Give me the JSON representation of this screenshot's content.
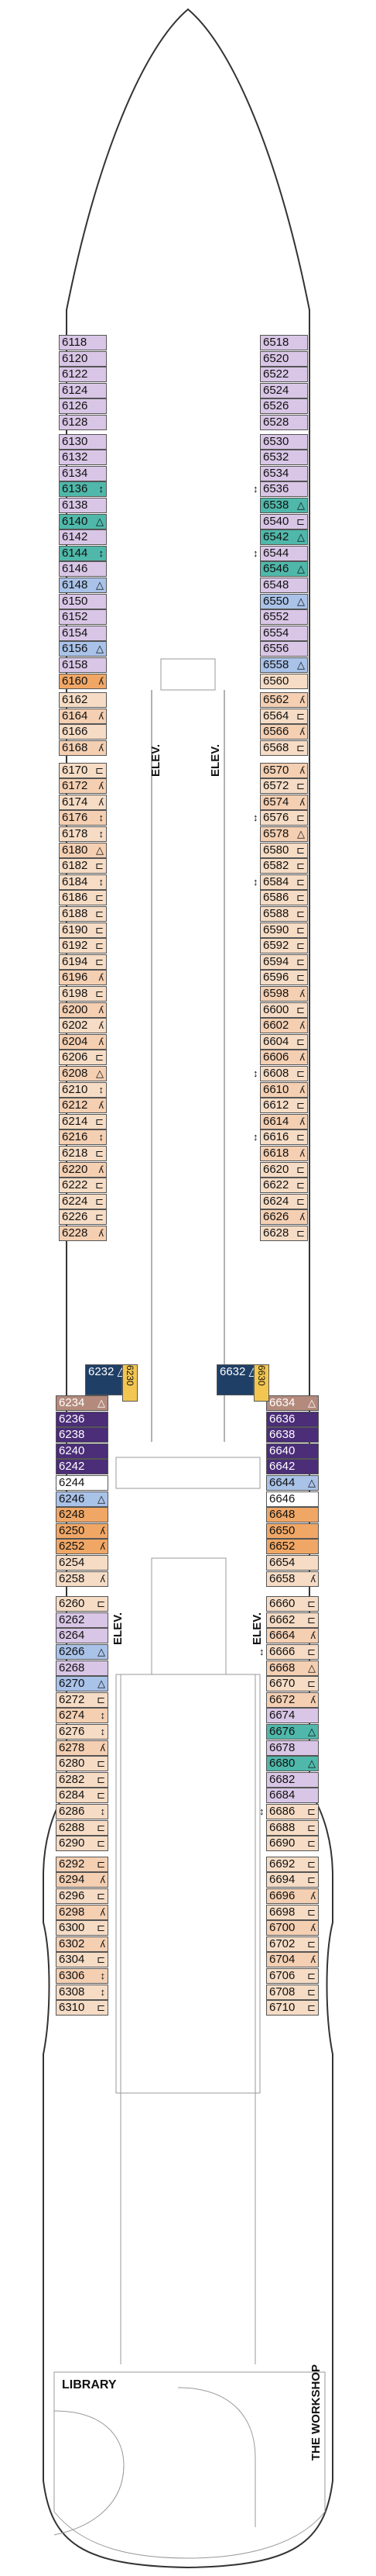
{
  "labels": {
    "elevator": "ELEV.",
    "library": "LIBRARY",
    "workshop": "THE WORKSHOP"
  },
  "colors": {
    "lilac": "#d9c6e6",
    "teal": "#4fb8aa",
    "blue": "#a9c2e8",
    "tan": "#f4cfb2",
    "orange": "#f0a766",
    "rose": "#b48a7c",
    "purple": "#4b2d78",
    "navy": "#1f3f66",
    "yellow": "#f2c650"
  },
  "icons": {
    "accessible": "△",
    "connecting": "↕",
    "sofa_bed": "⊸",
    "bed": "⊏"
  },
  "left_cabins": [
    {
      "n": "6118",
      "c": "lilac"
    },
    {
      "n": "6120",
      "c": "lilac"
    },
    {
      "n": "6122",
      "c": "lilac"
    },
    {
      "n": "6124",
      "c": "lilac"
    },
    {
      "n": "6126",
      "c": "lilac"
    },
    {
      "n": "6128",
      "c": "lilac"
    },
    {
      "n": "6130",
      "c": "lilac"
    },
    {
      "n": "6132",
      "c": "lilac"
    },
    {
      "n": "6134",
      "c": "lilac"
    },
    {
      "n": "6136",
      "c": "teal",
      "m": "↕"
    },
    {
      "n": "6138",
      "c": "lilac"
    },
    {
      "n": "6140",
      "c": "teal",
      "m": "△"
    },
    {
      "n": "6142",
      "c": "lilac"
    },
    {
      "n": "6144",
      "c": "teal",
      "m": "↕"
    },
    {
      "n": "6146",
      "c": "lilac"
    },
    {
      "n": "6148",
      "c": "blue",
      "m": "△"
    },
    {
      "n": "6150",
      "c": "lilac"
    },
    {
      "n": "6152",
      "c": "lilac"
    },
    {
      "n": "6154",
      "c": "lilac"
    },
    {
      "n": "6156",
      "c": "blue",
      "m": "△"
    },
    {
      "n": "6158",
      "c": "lilac"
    },
    {
      "n": "6160",
      "c": "orange",
      "m": "ʎ"
    },
    {
      "n": "6162",
      "c": "sand"
    },
    {
      "n": "6164",
      "c": "tan",
      "m": "ʎ"
    },
    {
      "n": "6166",
      "c": "sand"
    },
    {
      "n": "6168",
      "c": "tan",
      "m": "ʎ"
    },
    {
      "n": "6170",
      "c": "sand",
      "m": "⊏"
    },
    {
      "n": "6172",
      "c": "tan",
      "m": "ʎ"
    },
    {
      "n": "6174",
      "c": "sand",
      "m": "ʎ"
    },
    {
      "n": "6176",
      "c": "tan",
      "m": "↕"
    },
    {
      "n": "6178",
      "c": "sand",
      "m": "↕"
    },
    {
      "n": "6180",
      "c": "tan",
      "m": "△"
    },
    {
      "n": "6182",
      "c": "sand",
      "m": "⊏"
    },
    {
      "n": "6184",
      "c": "sand",
      "m": "↕"
    },
    {
      "n": "6186",
      "c": "sand",
      "m": "⊏"
    },
    {
      "n": "6188",
      "c": "sand",
      "m": "⊏"
    },
    {
      "n": "6190",
      "c": "sand",
      "m": "⊏"
    },
    {
      "n": "6192",
      "c": "sand",
      "m": "⊏"
    },
    {
      "n": "6194",
      "c": "sand",
      "m": "⊏"
    },
    {
      "n": "6196",
      "c": "tan",
      "m": "ʎ"
    },
    {
      "n": "6198",
      "c": "sand",
      "m": "⊏"
    },
    {
      "n": "6200",
      "c": "tan",
      "m": "ʎ"
    },
    {
      "n": "6202",
      "c": "sand",
      "m": "ʎ"
    },
    {
      "n": "6204",
      "c": "tan",
      "m": "ʎ"
    },
    {
      "n": "6206",
      "c": "sand",
      "m": "⊏"
    },
    {
      "n": "6208",
      "c": "tan",
      "m": "△"
    },
    {
      "n": "6210",
      "c": "sand",
      "m": "↕"
    },
    {
      "n": "6212",
      "c": "tan",
      "m": "ʎ"
    },
    {
      "n": "6214",
      "c": "sand",
      "m": "⊏"
    },
    {
      "n": "6216",
      "c": "tan",
      "m": "↕"
    },
    {
      "n": "6218",
      "c": "sand",
      "m": "⊏"
    },
    {
      "n": "6220",
      "c": "tan",
      "m": "ʎ"
    },
    {
      "n": "6222",
      "c": "sand",
      "m": "⊏"
    },
    {
      "n": "6224",
      "c": "sand",
      "m": "⊏"
    },
    {
      "n": "6226",
      "c": "sand",
      "m": "⊏"
    },
    {
      "n": "6228",
      "c": "tan",
      "m": "ʎ"
    }
  ],
  "right_cabins": [
    {
      "n": "6518",
      "c": "lilac"
    },
    {
      "n": "6520",
      "c": "lilac"
    },
    {
      "n": "6522",
      "c": "lilac"
    },
    {
      "n": "6524",
      "c": "lilac"
    },
    {
      "n": "6526",
      "c": "lilac"
    },
    {
      "n": "6528",
      "c": "lilac"
    },
    {
      "n": "6530",
      "c": "lilac"
    },
    {
      "n": "6532",
      "c": "lilac"
    },
    {
      "n": "6534",
      "c": "lilac"
    },
    {
      "n": "6536",
      "c": "lilac",
      "ml": "↕"
    },
    {
      "n": "6538",
      "c": "teal",
      "m": "△"
    },
    {
      "n": "6540",
      "c": "lilac",
      "m": "⊏"
    },
    {
      "n": "6542",
      "c": "teal",
      "m": "△"
    },
    {
      "n": "6544",
      "c": "lilac",
      "ml": "↕"
    },
    {
      "n": "6546",
      "c": "teal",
      "m": "△"
    },
    {
      "n": "6548",
      "c": "lilac"
    },
    {
      "n": "6550",
      "c": "blue",
      "m": "△"
    },
    {
      "n": "6552",
      "c": "lilac"
    },
    {
      "n": "6554",
      "c": "lilac"
    },
    {
      "n": "6556",
      "c": "lilac"
    },
    {
      "n": "6558",
      "c": "blue",
      "m": "△"
    },
    {
      "n": "6560",
      "c": "sand"
    },
    {
      "n": "6562",
      "c": "tan",
      "m": "ʎ"
    },
    {
      "n": "6564",
      "c": "sand",
      "m": "⊏"
    },
    {
      "n": "6566",
      "c": "tan",
      "m": "ʎ"
    },
    {
      "n": "6568",
      "c": "sand",
      "m": "⊏"
    },
    {
      "n": "6570",
      "c": "tan",
      "m": "ʎ"
    },
    {
      "n": "6572",
      "c": "sand",
      "m": "⊏"
    },
    {
      "n": "6574",
      "c": "tan",
      "m": "ʎ"
    },
    {
      "n": "6576",
      "c": "sand",
      "ml": "↕",
      "m": "⊏"
    },
    {
      "n": "6578",
      "c": "tan",
      "m": "△"
    },
    {
      "n": "6580",
      "c": "sand",
      "m": "⊏"
    },
    {
      "n": "6582",
      "c": "sand",
      "m": "⊏"
    },
    {
      "n": "6584",
      "c": "sand",
      "ml": "↕",
      "m": "⊏"
    },
    {
      "n": "6586",
      "c": "sand",
      "m": "⊏"
    },
    {
      "n": "6588",
      "c": "sand",
      "m": "⊏"
    },
    {
      "n": "6590",
      "c": "sand",
      "m": "⊏"
    },
    {
      "n": "6592",
      "c": "sand",
      "m": "⊏"
    },
    {
      "n": "6594",
      "c": "sand",
      "m": "⊏"
    },
    {
      "n": "6596",
      "c": "sand",
      "m": "⊏"
    },
    {
      "n": "6598",
      "c": "tan",
      "m": "ʎ"
    },
    {
      "n": "6600",
      "c": "sand",
      "m": "⊏"
    },
    {
      "n": "6602",
      "c": "tan",
      "m": "ʎ"
    },
    {
      "n": "6604",
      "c": "sand",
      "m": "⊏"
    },
    {
      "n": "6606",
      "c": "tan",
      "m": "ʎ"
    },
    {
      "n": "6608",
      "c": "sand",
      "ml": "↕",
      "m": "⊏"
    },
    {
      "n": "6610",
      "c": "tan",
      "m": "ʎ"
    },
    {
      "n": "6612",
      "c": "sand",
      "m": "⊏"
    },
    {
      "n": "6614",
      "c": "tan",
      "m": "ʎ"
    },
    {
      "n": "6616",
      "c": "sand",
      "ml": "↕",
      "m": "⊏"
    },
    {
      "n": "6618",
      "c": "tan",
      "m": "ʎ"
    },
    {
      "n": "6620",
      "c": "sand",
      "m": "⊏"
    },
    {
      "n": "6622",
      "c": "sand",
      "m": "⊏"
    },
    {
      "n": "6624",
      "c": "sand",
      "m": "⊏"
    },
    {
      "n": "6626",
      "c": "tan",
      "m": "ʎ"
    },
    {
      "n": "6628",
      "c": "sand",
      "m": "⊏"
    }
  ],
  "mid_cabins": {
    "left": [
      {
        "n": "6232",
        "c": "navy",
        "m": "△"
      },
      {
        "n": "6230",
        "c": "yellow"
      }
    ],
    "right": [
      {
        "n": "6632",
        "c": "navy",
        "m": "△"
      },
      {
        "n": "6630",
        "c": "yellow"
      }
    ]
  },
  "left_aft": [
    {
      "n": "6234",
      "c": "rose",
      "m": "△"
    },
    {
      "n": "6236",
      "c": "purple"
    },
    {
      "n": "6238",
      "c": "purple"
    },
    {
      "n": "6240",
      "c": "purple"
    },
    {
      "n": "6242",
      "c": "purple"
    },
    {
      "n": "6244",
      "c": "white"
    },
    {
      "n": "6246",
      "c": "blue",
      "m": "△"
    },
    {
      "n": "6248",
      "c": "orange"
    },
    {
      "n": "6250",
      "c": "orange",
      "m": "ʎ"
    },
    {
      "n": "6252",
      "c": "orange",
      "m": "ʎ"
    },
    {
      "n": "6254",
      "c": "sand"
    },
    {
      "n": "6258",
      "c": "sand",
      "m": "ʎ"
    },
    {
      "n": "6260",
      "c": "sand",
      "m": "⊏"
    },
    {
      "n": "6262",
      "c": "lilac"
    },
    {
      "n": "6264",
      "c": "lilac"
    },
    {
      "n": "6266",
      "c": "blue",
      "m": "△"
    },
    {
      "n": "6268",
      "c": "lilac"
    },
    {
      "n": "6270",
      "c": "blue",
      "m": "△"
    },
    {
      "n": "6272",
      "c": "sand",
      "m": "⊏"
    },
    {
      "n": "6274",
      "c": "tan",
      "m": "↕"
    },
    {
      "n": "6276",
      "c": "sand",
      "m": "↕"
    },
    {
      "n": "6278",
      "c": "tan",
      "m": "ʎ"
    },
    {
      "n": "6280",
      "c": "sand",
      "m": "⊏"
    },
    {
      "n": "6282",
      "c": "sand",
      "m": "⊏"
    },
    {
      "n": "6284",
      "c": "sand",
      "m": "⊏"
    },
    {
      "n": "6286",
      "c": "sand",
      "m": "↕"
    },
    {
      "n": "6288",
      "c": "sand",
      "m": "⊏"
    },
    {
      "n": "6290",
      "c": "sand",
      "m": "⊏"
    },
    {
      "n": "6292",
      "c": "tan",
      "m": "⊏"
    },
    {
      "n": "6294",
      "c": "tan",
      "m": "ʎ"
    },
    {
      "n": "6296",
      "c": "sand",
      "m": "⊏"
    },
    {
      "n": "6298",
      "c": "tan",
      "m": "ʎ"
    },
    {
      "n": "6300",
      "c": "sand",
      "m": "⊏"
    },
    {
      "n": "6302",
      "c": "tan",
      "m": "ʎ"
    },
    {
      "n": "6304",
      "c": "sand",
      "m": "⊏"
    },
    {
      "n": "6306",
      "c": "tan",
      "m": "↕"
    },
    {
      "n": "6308",
      "c": "sand",
      "m": "↕"
    },
    {
      "n": "6310",
      "c": "sand",
      "m": "⊏"
    }
  ],
  "right_aft": [
    {
      "n": "6634",
      "c": "rose",
      "m": "△"
    },
    {
      "n": "6636",
      "c": "purple"
    },
    {
      "n": "6638",
      "c": "purple"
    },
    {
      "n": "6640",
      "c": "purple"
    },
    {
      "n": "6642",
      "c": "purple"
    },
    {
      "n": "6644",
      "c": "blue",
      "m": "△"
    },
    {
      "n": "6646",
      "c": "white"
    },
    {
      "n": "6648",
      "c": "orange"
    },
    {
      "n": "6650",
      "c": "orange"
    },
    {
      "n": "6652",
      "c": "orange"
    },
    {
      "n": "6654",
      "c": "sand"
    },
    {
      "n": "6658",
      "c": "sand",
      "m": "ʎ"
    },
    {
      "n": "6660",
      "c": "sand",
      "m": "⊏"
    },
    {
      "n": "6662",
      "c": "sand",
      "m": "⊏"
    },
    {
      "n": "6664",
      "c": "tan",
      "m": "ʎ"
    },
    {
      "n": "6666",
      "c": "sand",
      "ml": "↕",
      "m": "⊏"
    },
    {
      "n": "6668",
      "c": "tan",
      "m": "△"
    },
    {
      "n": "6670",
      "c": "sand",
      "m": "⊏"
    },
    {
      "n": "6672",
      "c": "tan",
      "m": "ʎ"
    },
    {
      "n": "6674",
      "c": "lilac"
    },
    {
      "n": "6676",
      "c": "teal",
      "m": "△"
    },
    {
      "n": "6678",
      "c": "lilac"
    },
    {
      "n": "6680",
      "c": "teal",
      "m": "△"
    },
    {
      "n": "6682",
      "c": "lilac"
    },
    {
      "n": "6684",
      "c": "lilac"
    },
    {
      "n": "6686",
      "c": "sand",
      "ml": "↕",
      "m": "⊏"
    },
    {
      "n": "6688",
      "c": "sand",
      "m": "⊏"
    },
    {
      "n": "6690",
      "c": "sand",
      "m": "⊏"
    },
    {
      "n": "6692",
      "c": "sand",
      "m": "⊏"
    },
    {
      "n": "6694",
      "c": "sand",
      "m": "⊏"
    },
    {
      "n": "6696",
      "c": "tan",
      "m": "ʎ"
    },
    {
      "n": "6698",
      "c": "sand",
      "m": "⊏"
    },
    {
      "n": "6700",
      "c": "tan",
      "m": "ʎ"
    },
    {
      "n": "6702",
      "c": "sand",
      "m": "⊏"
    },
    {
      "n": "6704",
      "c": "tan",
      "m": "ʎ"
    },
    {
      "n": "6706",
      "c": "sand",
      "m": "⊏"
    },
    {
      "n": "6708",
      "c": "sand",
      "m": "⊏"
    },
    {
      "n": "6710",
      "c": "sand",
      "m": "⊏"
    }
  ]
}
